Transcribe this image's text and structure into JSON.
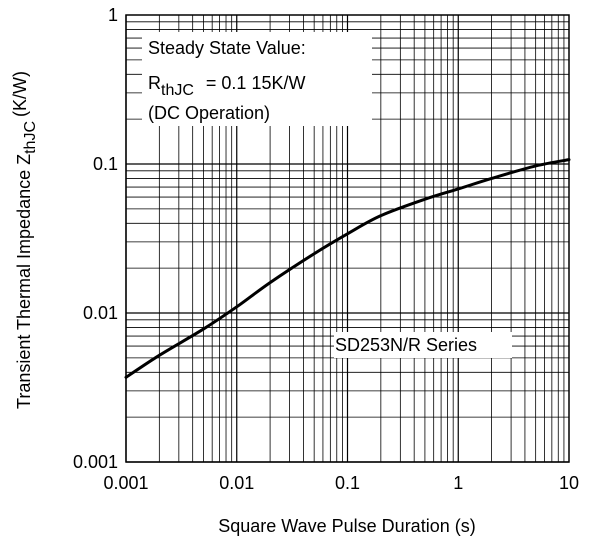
{
  "chart_data": {
    "type": "line",
    "x_scale": "log",
    "y_scale": "log",
    "xlim": [
      0.001,
      10
    ],
    "ylim": [
      0.001,
      1
    ],
    "xlabel": "Square Wave Pulse Duration (s)",
    "ylabel": {
      "main": "Transient Thermal Impedance Z",
      "subscript": "thJC",
      "unit": "(K/W)"
    },
    "x_ticks": [
      "0.001",
      "0.01",
      "0.1",
      "1",
      "10"
    ],
    "y_ticks": [
      "0.001",
      "0.01",
      "0.1",
      "1"
    ],
    "grid": true,
    "series": [
      {
        "color": "#000000",
        "x": [
          0.001,
          0.002,
          0.005,
          0.01,
          0.02,
          0.05,
          0.1,
          0.2,
          0.5,
          1,
          2,
          5,
          10
        ],
        "y": [
          0.0037,
          0.0052,
          0.0078,
          0.011,
          0.016,
          0.025,
          0.034,
          0.045,
          0.058,
          0.068,
          0.08,
          0.097,
          0.107
        ]
      }
    ],
    "annotations": {
      "steady_state": {
        "line1": "Steady State Value:",
        "line2_main": "R",
        "line2_sub": "thJC",
        "line2_value": "= 0.1 15K/W",
        "line3": "(DC Operation)"
      },
      "series_label": "SD253N/R Series"
    }
  }
}
